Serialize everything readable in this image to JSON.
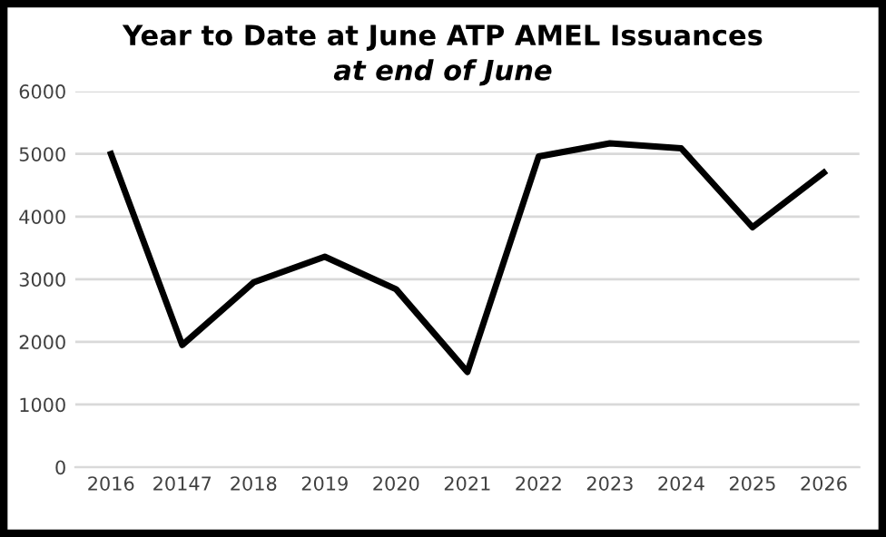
{
  "chart_data": {
    "type": "line",
    "title": "Year to Date at June ATP AMEL Issuances",
    "subtitle": "at end of June",
    "categories": [
      "2016",
      "20147",
      "2018",
      "2019",
      "2020",
      "2021",
      "2022",
      "2023",
      "2024",
      "2025",
      "2026"
    ],
    "series": [
      {
        "color": "#000000",
        "values": [
          5000,
          1950,
          2950,
          3360,
          2840,
          1520,
          4960,
          5170,
          5090,
          3830,
          4700
        ]
      }
    ],
    "ylim": [
      0,
      6000
    ],
    "yticks": [
      0,
      1000,
      2000,
      3000,
      4000,
      5000,
      6000
    ],
    "grid": "y",
    "legend": false,
    "marker": "none",
    "line_style": "solid"
  }
}
